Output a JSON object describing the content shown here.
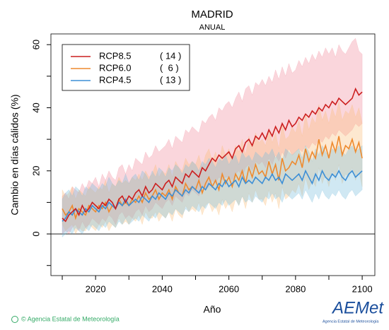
{
  "chart_data": {
    "type": "line",
    "title": "MADRID",
    "subtitle": "ANUAL",
    "ylabel": "Cambio en días cálidos (%)",
    "xlabel": "Año",
    "xlim": [
      2006.6,
      2103.8
    ],
    "xticks": [
      2020,
      2040,
      2060,
      2080,
      2100
    ],
    "xminor_ticks": [
      2010,
      2030,
      2050,
      2070,
      2090
    ],
    "ylim": [
      -13.2,
      63.4
    ],
    "yticks": [
      0,
      20,
      40,
      60
    ],
    "yminor_ticks": [
      -10,
      10,
      30,
      50
    ],
    "x": [
      2010,
      2011,
      2012,
      2013,
      2014,
      2015,
      2016,
      2017,
      2018,
      2019,
      2020,
      2021,
      2022,
      2023,
      2024,
      2025,
      2026,
      2027,
      2028,
      2029,
      2030,
      2031,
      2032,
      2033,
      2034,
      2035,
      2036,
      2037,
      2038,
      2039,
      2040,
      2041,
      2042,
      2043,
      2044,
      2045,
      2046,
      2047,
      2048,
      2049,
      2050,
      2051,
      2052,
      2053,
      2054,
      2055,
      2056,
      2057,
      2058,
      2059,
      2060,
      2061,
      2062,
      2063,
      2064,
      2065,
      2066,
      2067,
      2068,
      2069,
      2070,
      2071,
      2072,
      2073,
      2074,
      2075,
      2076,
      2077,
      2078,
      2079,
      2080,
      2081,
      2082,
      2083,
      2084,
      2085,
      2086,
      2087,
      2088,
      2089,
      2090,
      2091,
      2092,
      2093,
      2094,
      2095,
      2096,
      2097,
      2098,
      2099,
      2100
    ],
    "series": [
      {
        "name": "RCP8.5",
        "legend_note": "( 14 )",
        "color": "#cc1f1f",
        "band_color": "rgba(240,120,140,0.3)",
        "values": [
          5,
          4,
          6,
          7,
          8,
          6,
          9,
          7,
          8,
          10,
          9,
          8,
          10,
          9,
          11,
          10,
          8,
          11,
          12,
          10,
          12,
          11,
          13,
          14,
          12,
          15,
          13,
          14,
          16,
          15,
          14,
          16,
          17,
          15,
          18,
          17,
          16,
          19,
          18,
          20,
          19,
          18,
          21,
          20,
          22,
          24,
          23,
          25,
          24,
          25,
          26,
          24,
          27,
          28,
          26,
          29,
          30,
          28,
          31,
          30,
          32,
          30,
          33,
          31,
          34,
          32,
          35,
          33,
          36,
          34,
          35,
          37,
          36,
          38,
          37,
          39,
          38,
          40,
          39,
          41,
          40,
          42,
          41,
          43,
          42,
          41,
          42,
          43,
          46,
          44,
          45
        ],
        "band_upper": [
          12,
          13,
          11,
          15,
          14,
          13,
          16,
          14,
          17,
          16,
          18,
          15,
          19,
          17,
          20,
          18,
          17,
          21,
          22,
          19,
          22,
          20,
          24,
          23,
          22,
          26,
          24,
          25,
          28,
          26,
          27,
          28,
          30,
          27,
          31,
          30,
          29,
          33,
          32,
          34,
          33,
          32,
          36,
          35,
          37,
          38,
          36,
          40,
          39,
          41,
          42,
          40,
          43,
          45,
          42,
          46,
          47,
          44,
          48,
          47,
          49,
          47,
          50,
          48,
          52,
          49,
          53,
          50,
          54,
          51,
          52,
          55,
          53,
          56,
          54,
          57,
          55,
          58,
          56,
          59,
          57,
          59,
          56,
          60,
          58,
          57,
          59,
          61,
          62,
          58,
          57
        ],
        "band_lower": [
          0,
          1,
          0,
          2,
          3,
          1,
          4,
          2,
          3,
          5,
          4,
          3,
          5,
          4,
          6,
          5,
          3,
          6,
          7,
          5,
          6,
          5,
          7,
          8,
          6,
          9,
          7,
          8,
          10,
          9,
          8,
          10,
          11,
          9,
          12,
          11,
          10,
          13,
          12,
          14,
          13,
          12,
          15,
          14,
          15,
          17,
          16,
          18,
          17,
          18,
          18,
          17,
          19,
          20,
          18,
          21,
          22,
          20,
          23,
          22,
          23,
          21,
          24,
          22,
          25,
          23,
          26,
          24,
          27,
          25,
          26,
          27,
          26,
          28,
          27,
          29,
          28,
          30,
          29,
          31,
          30,
          32,
          31,
          33,
          32,
          31,
          32,
          33,
          35,
          34,
          35
        ]
      },
      {
        "name": "RCP6.0",
        "legend_note": "(  6 )",
        "color": "#ee8a2e",
        "band_color": "rgba(250,190,120,0.35)",
        "values": [
          8,
          6,
          7,
          9,
          5,
          8,
          7,
          6,
          9,
          8,
          7,
          9,
          8,
          10,
          7,
          9,
          8,
          11,
          9,
          10,
          9,
          11,
          10,
          12,
          10,
          13,
          11,
          12,
          14,
          11,
          13,
          12,
          14,
          11,
          15,
          13,
          12,
          16,
          14,
          15,
          14,
          17,
          13,
          16,
          18,
          15,
          17,
          14,
          19,
          16,
          18,
          15,
          19,
          17,
          20,
          16,
          21,
          18,
          22,
          19,
          20,
          18,
          23,
          19,
          22,
          17,
          24,
          20,
          21,
          23,
          22,
          25,
          21,
          27,
          23,
          26,
          24,
          30,
          25,
          28,
          24,
          29,
          26,
          31,
          25,
          28,
          27,
          30,
          26,
          29,
          24
        ],
        "band_upper": [
          14,
          12,
          13,
          15,
          11,
          14,
          13,
          12,
          15,
          14,
          13,
          15,
          14,
          17,
          13,
          16,
          15,
          18,
          16,
          17,
          16,
          18,
          17,
          19,
          17,
          20,
          18,
          19,
          22,
          18,
          20,
          19,
          22,
          18,
          23,
          21,
          20,
          24,
          22,
          23,
          22,
          25,
          21,
          25,
          27,
          23,
          26,
          22,
          28,
          25,
          27,
          24,
          28,
          26,
          30,
          25,
          31,
          27,
          32,
          29,
          30,
          28,
          33,
          29,
          32,
          27,
          35,
          30,
          31,
          34,
          32,
          36,
          31,
          38,
          33,
          37,
          35,
          41,
          36,
          39,
          35,
          40,
          37,
          42,
          36,
          39,
          38,
          41,
          37,
          40,
          35
        ],
        "band_lower": [
          3,
          1,
          2,
          3,
          0,
          2,
          1,
          1,
          3,
          2,
          1,
          3,
          2,
          4,
          1,
          3,
          2,
          5,
          3,
          4,
          3,
          5,
          4,
          6,
          3,
          7,
          5,
          5,
          7,
          4,
          6,
          5,
          7,
          4,
          8,
          6,
          5,
          9,
          7,
          8,
          7,
          10,
          6,
          9,
          10,
          7,
          9,
          6,
          11,
          8,
          10,
          7,
          11,
          9,
          12,
          8,
          13,
          10,
          14,
          11,
          11,
          9,
          14,
          10,
          13,
          8,
          15,
          11,
          12,
          14,
          13,
          16,
          12,
          18,
          14,
          17,
          15,
          21,
          16,
          19,
          15,
          20,
          17,
          22,
          16,
          19,
          18,
          21,
          17,
          20,
          15
        ]
      },
      {
        "name": "RCP4.5",
        "legend_note": "( 13 )",
        "color": "#3d8fd6",
        "band_color": "rgba(120,190,220,0.35)",
        "values": [
          4,
          5,
          7,
          6,
          8,
          7,
          6,
          8,
          7,
          9,
          8,
          7,
          9,
          8,
          10,
          9,
          8,
          10,
          9,
          11,
          9,
          10,
          11,
          10,
          12,
          11,
          10,
          12,
          11,
          13,
          12,
          11,
          13,
          12,
          14,
          13,
          12,
          14,
          13,
          15,
          14,
          13,
          15,
          14,
          16,
          15,
          14,
          16,
          15,
          17,
          15,
          16,
          17,
          15,
          18,
          16,
          17,
          16,
          18,
          17,
          16,
          18,
          17,
          19,
          17,
          18,
          16,
          19,
          18,
          17,
          18,
          19,
          17,
          20,
          18,
          16,
          19,
          17,
          20,
          18,
          17,
          19,
          18,
          20,
          18,
          17,
          19,
          20,
          18,
          19,
          20
        ],
        "band_upper": [
          11,
          13,
          14,
          12,
          15,
          14,
          12,
          15,
          14,
          16,
          15,
          14,
          16,
          15,
          18,
          16,
          15,
          17,
          16,
          19,
          16,
          18,
          19,
          17,
          20,
          19,
          17,
          20,
          18,
          21,
          20,
          18,
          21,
          20,
          22,
          21,
          19,
          22,
          21,
          23,
          22,
          20,
          23,
          22,
          24,
          23,
          21,
          24,
          23,
          25,
          22,
          24,
          25,
          22,
          26,
          24,
          25,
          23,
          26,
          25,
          24,
          26,
          25,
          27,
          24,
          26,
          23,
          27,
          26,
          25,
          26,
          27,
          24,
          28,
          26,
          23,
          27,
          25,
          28,
          26,
          25,
          27,
          26,
          28,
          26,
          25,
          27,
          28,
          26,
          27,
          28
        ],
        "band_lower": [
          -1,
          0,
          1,
          0,
          2,
          1,
          0,
          2,
          1,
          3,
          2,
          1,
          3,
          2,
          4,
          3,
          2,
          4,
          3,
          5,
          3,
          4,
          5,
          4,
          6,
          5,
          4,
          6,
          5,
          7,
          6,
          5,
          7,
          6,
          8,
          7,
          6,
          8,
          7,
          9,
          8,
          7,
          9,
          8,
          10,
          9,
          8,
          10,
          9,
          11,
          9,
          10,
          11,
          9,
          12,
          10,
          11,
          10,
          12,
          11,
          10,
          12,
          11,
          13,
          11,
          12,
          10,
          13,
          12,
          11,
          12,
          13,
          11,
          14,
          12,
          10,
          13,
          11,
          14,
          12,
          11,
          13,
          12,
          14,
          12,
          11,
          13,
          14,
          12,
          13,
          14
        ]
      }
    ]
  },
  "footer": {
    "copyright": "© Agencia Estatal de Meteorología",
    "logo": "AEMet",
    "logo_caption": "Agencia Estatal de Meteorología"
  }
}
